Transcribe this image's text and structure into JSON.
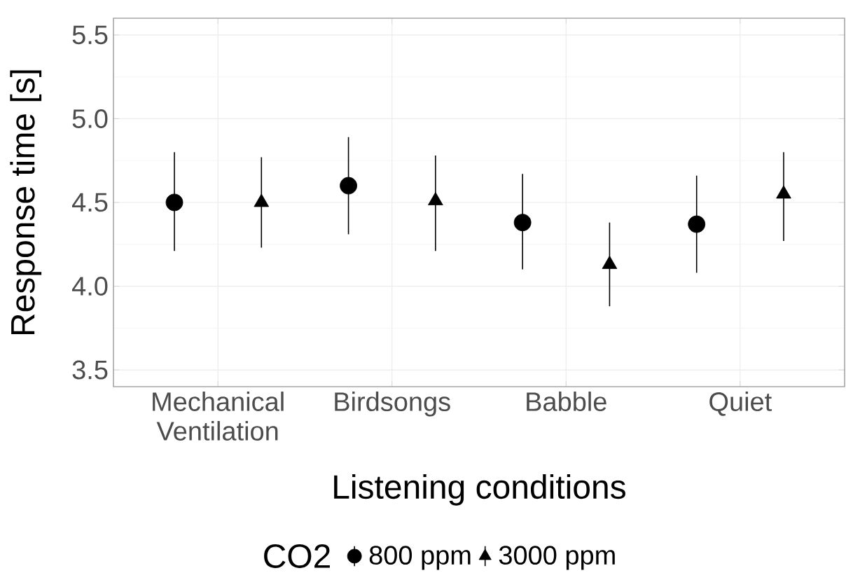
{
  "chart_data": {
    "type": "scatter",
    "xlabel": "Listening conditions",
    "ylabel": "Response time [s]",
    "legend_title": "CO2",
    "categories": [
      "Mechanical Ventilation",
      "Birdsongs",
      "Babble",
      "Quiet"
    ],
    "series": [
      {
        "name": "800 ppm",
        "color": "#000000",
        "marker": "circle",
        "values": [
          4.5,
          4.6,
          4.38,
          4.37
        ],
        "errors": [
          [
            4.21,
            4.8
          ],
          [
            4.31,
            4.89
          ],
          [
            4.1,
            4.67
          ],
          [
            4.08,
            4.66
          ]
        ]
      },
      {
        "name": "3000 ppm",
        "color": "#000000",
        "marker": "triangle",
        "values": [
          4.5,
          4.51,
          4.13,
          4.55
        ],
        "errors": [
          [
            4.23,
            4.77
          ],
          [
            4.21,
            4.78
          ],
          [
            3.88,
            4.38
          ],
          [
            4.27,
            4.8
          ]
        ]
      }
    ],
    "ylim": [
      3.4,
      5.6
    ],
    "yticks": [
      3.5,
      {
        "value": 4,
        "label": "4.0"
      },
      4.5,
      {
        "value": 5,
        "label": "5.0"
      },
      5.5
    ],
    "grid": true,
    "legend": "bottom"
  }
}
